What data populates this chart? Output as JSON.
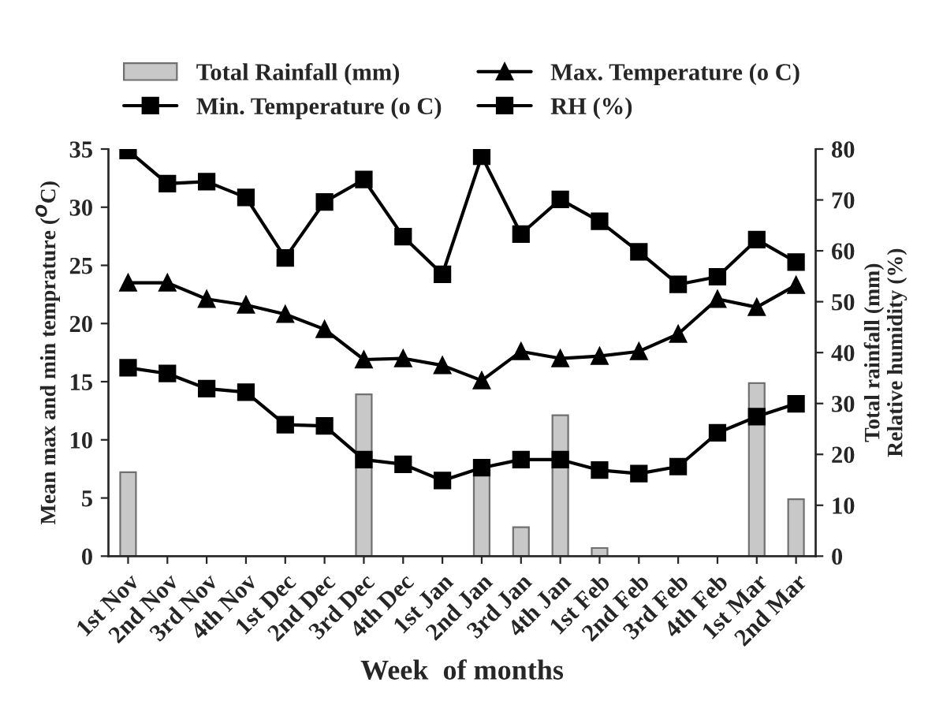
{
  "chart_data": {
    "type": "line",
    "xlabel": "Week  of months",
    "ylabel": "Mean max and min temprature ($^{O}$C)",
    "y2label": "Total rainfall (mm)\nRelative humidity (%)",
    "categories": [
      "1st Nov",
      "2nd Nov",
      "3rd Nov",
      "4th Nov",
      "1st Dec",
      "2nd Dec",
      "3rd Dec",
      "4th Dec",
      "1st Jan",
      "2nd Jan",
      "3rd Jan",
      "4th Jan",
      "1st Feb",
      "2nd Feb",
      "3rd Feb",
      "4th Feb",
      "1st Mar",
      "2nd Mar"
    ],
    "series": [
      {
        "name": "Total Rainfall (mm)",
        "type": "bar",
        "axis": "y2",
        "color": "#c8c8c8",
        "values": [
          16.5,
          null,
          null,
          null,
          null,
          null,
          31.8,
          null,
          null,
          16,
          5.7,
          27.7,
          1.6,
          null,
          null,
          null,
          34,
          11.2
        ]
      },
      {
        "name": "Max. Temperature (o C)",
        "marker": "triangle",
        "color": "#000000",
        "values": [
          23.5,
          23.5,
          22.1,
          21.6,
          20.8,
          19.5,
          16.9,
          17.0,
          16.4,
          15.1,
          17.6,
          17.0,
          17.2,
          17.6,
          19.1,
          22.1,
          21.4,
          23.3
        ]
      },
      {
        "name": "Min. Temperature (o C)",
        "marker": "square",
        "color": "#000000",
        "values": [
          16.2,
          15.7,
          14.4,
          14.1,
          11.3,
          11.2,
          8.3,
          7.9,
          6.5,
          7.6,
          8.3,
          8.3,
          7.4,
          7.1,
          7.7,
          10.6,
          12.0,
          13.1
        ]
      },
      {
        "name": "RH (%)",
        "marker": "square",
        "axis": "y2",
        "color": "#000000",
        "values": [
          79.7,
          73.2,
          73.6,
          70.5,
          58.6,
          69.6,
          74.0,
          62.8,
          55.4,
          78.6,
          63.3,
          70.1,
          65.8,
          59.8,
          53.4,
          54.9,
          62.2,
          57.8
        ]
      }
    ],
    "ylim": [
      0,
      35
    ],
    "yticks": [
      0,
      5,
      10,
      15,
      20,
      25,
      30,
      35
    ],
    "y2lim": [
      0,
      80
    ],
    "y2ticks": [
      0,
      10,
      20,
      30,
      40,
      50,
      60,
      70,
      80
    ],
    "grid": false,
    "legend": "top",
    "line_style": "solid"
  }
}
